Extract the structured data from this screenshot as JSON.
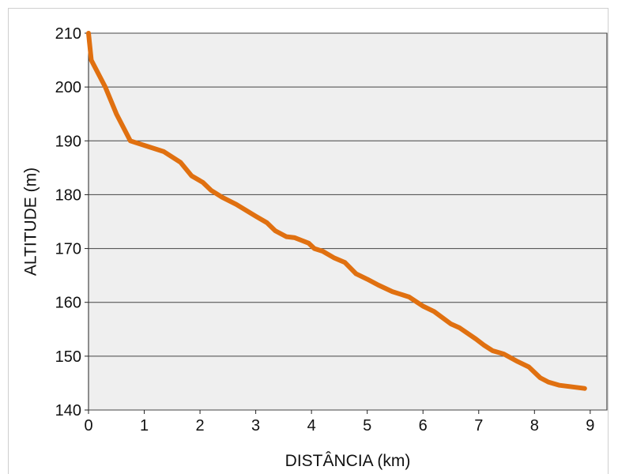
{
  "chart_data": {
    "type": "line",
    "title": "",
    "xlabel": "DISTÂNCIA (km)",
    "ylabel": "ALTITUDE (m)",
    "xlim": [
      0,
      9.3
    ],
    "ylim": [
      140,
      210
    ],
    "xticks": [
      0,
      1,
      2,
      3,
      4,
      5,
      6,
      7,
      8,
      9
    ],
    "yticks": [
      140,
      150,
      160,
      170,
      180,
      190,
      200,
      210
    ],
    "grid": "horizontal",
    "colors": {
      "line": "#e07010",
      "plot_bg": "#efefef",
      "grid": "#444444"
    },
    "series": [
      {
        "points": [
          [
            0.0,
            210
          ],
          [
            0.05,
            205
          ],
          [
            0.3,
            200
          ],
          [
            0.5,
            195
          ],
          [
            0.75,
            190
          ],
          [
            1.05,
            189
          ],
          [
            1.35,
            188
          ],
          [
            1.65,
            186
          ],
          [
            1.85,
            183.5
          ],
          [
            2.05,
            182.3
          ],
          [
            2.2,
            180.8
          ],
          [
            2.4,
            179.5
          ],
          [
            2.65,
            178.2
          ],
          [
            3.0,
            176
          ],
          [
            3.2,
            174.8
          ],
          [
            3.35,
            173.3
          ],
          [
            3.55,
            172.2
          ],
          [
            3.7,
            172
          ],
          [
            3.95,
            171
          ],
          [
            4.05,
            170
          ],
          [
            4.2,
            169.5
          ],
          [
            4.4,
            168.3
          ],
          [
            4.6,
            167.4
          ],
          [
            4.8,
            165.3
          ],
          [
            5.0,
            164.3
          ],
          [
            5.2,
            163.2
          ],
          [
            5.45,
            162
          ],
          [
            5.75,
            161
          ],
          [
            6.0,
            159.3
          ],
          [
            6.2,
            158.3
          ],
          [
            6.5,
            156
          ],
          [
            6.65,
            155.3
          ],
          [
            6.95,
            153.2
          ],
          [
            7.1,
            152
          ],
          [
            7.25,
            151
          ],
          [
            7.45,
            150.4
          ],
          [
            7.7,
            149
          ],
          [
            7.9,
            148
          ],
          [
            8.1,
            146
          ],
          [
            8.25,
            145.2
          ],
          [
            8.45,
            144.6
          ],
          [
            8.9,
            144
          ]
        ]
      }
    ]
  }
}
